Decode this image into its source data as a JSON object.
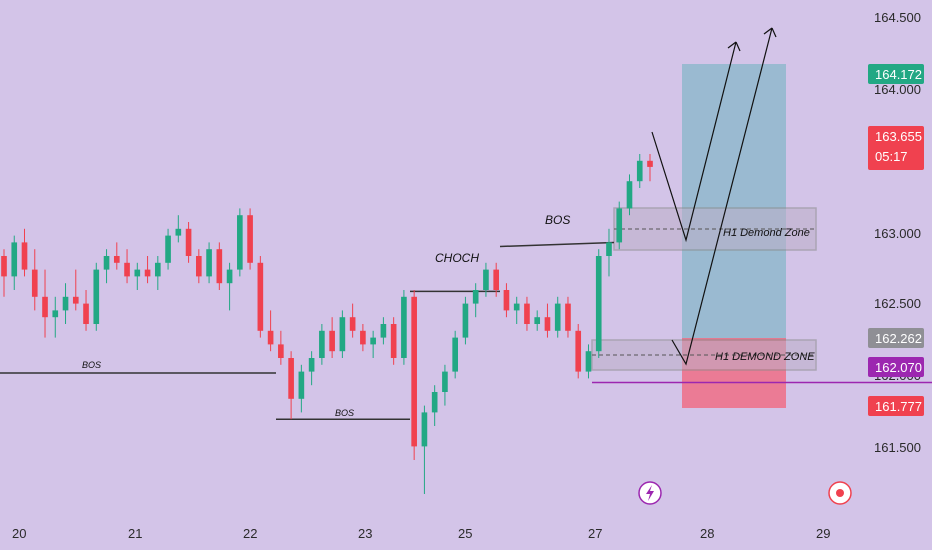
{
  "chart_data": {
    "type": "candlestick",
    "y_ticks": [
      "164.500",
      "164.000",
      "163.000",
      "162.500",
      "162.000",
      "161.500"
    ],
    "x_ticks": [
      "20",
      "21",
      "22",
      "23",
      "25",
      "27",
      "28",
      "29"
    ],
    "ylim": [
      161.0,
      164.75
    ],
    "price_badges": [
      {
        "value": "164.172",
        "color": "#22a884"
      },
      {
        "value": "163.655",
        "sub": "05:17",
        "color": "#f0414f"
      },
      {
        "value": "162.262",
        "color": "#8f8f95"
      },
      {
        "value": "162.070",
        "color": "#9c27b0"
      },
      {
        "value": "161.777",
        "color": "#f0414f"
      }
    ],
    "annotations": {
      "bos_left": "BOS",
      "bos_mid": "BOS",
      "bos_top": "BOS",
      "choch": "CHOCH",
      "zone_upper": "H1 Demond Zone",
      "zone_lower": "H1 DEMOND ZONE"
    },
    "levels": {
      "bos_left": 162.14,
      "bos_mid": 161.8,
      "choch": 162.74,
      "bos_top": 163.07,
      "zone_upper": [
        162.89,
        163.15
      ],
      "zone_lower": [
        162.02,
        162.22
      ],
      "entry_line": 162.07,
      "take_profit": 164.172,
      "stop_loss": 161.777
    },
    "candles": {
      "up_color": "#22a884",
      "down_color": "#f0414f",
      "series": [
        [
          163.0,
          163.05,
          162.7,
          162.85
        ],
        [
          162.85,
          163.15,
          162.75,
          163.1
        ],
        [
          163.1,
          163.2,
          162.85,
          162.9
        ],
        [
          162.9,
          163.05,
          162.6,
          162.7
        ],
        [
          162.7,
          162.9,
          162.4,
          162.55
        ],
        [
          162.55,
          162.7,
          162.4,
          162.6
        ],
        [
          162.6,
          162.8,
          162.5,
          162.7
        ],
        [
          162.7,
          162.9,
          162.6,
          162.65
        ],
        [
          162.65,
          162.75,
          162.45,
          162.5
        ],
        [
          162.5,
          162.95,
          162.45,
          162.9
        ],
        [
          162.9,
          163.05,
          162.8,
          163.0
        ],
        [
          163.0,
          163.1,
          162.9,
          162.95
        ],
        [
          162.95,
          163.05,
          162.8,
          162.85
        ],
        [
          162.85,
          162.95,
          162.75,
          162.9
        ],
        [
          162.9,
          163.0,
          162.8,
          162.85
        ],
        [
          162.85,
          163.0,
          162.75,
          162.95
        ],
        [
          162.95,
          163.2,
          162.9,
          163.15
        ],
        [
          163.15,
          163.3,
          163.1,
          163.2
        ],
        [
          163.2,
          163.25,
          162.95,
          163.0
        ],
        [
          163.0,
          163.05,
          162.8,
          162.85
        ],
        [
          162.85,
          163.1,
          162.8,
          163.05
        ],
        [
          163.05,
          163.1,
          162.75,
          162.8
        ],
        [
          162.8,
          162.95,
          162.6,
          162.9
        ],
        [
          162.9,
          163.35,
          162.85,
          163.3
        ],
        [
          163.3,
          163.35,
          162.9,
          162.95
        ],
        [
          162.95,
          163.0,
          162.4,
          162.45
        ],
        [
          162.45,
          162.6,
          162.3,
          162.35
        ],
        [
          162.35,
          162.45,
          162.2,
          162.25
        ],
        [
          162.25,
          162.3,
          161.8,
          161.95
        ],
        [
          161.95,
          162.2,
          161.85,
          162.15
        ],
        [
          162.15,
          162.3,
          162.05,
          162.25
        ],
        [
          162.25,
          162.5,
          162.2,
          162.45
        ],
        [
          162.45,
          162.55,
          162.25,
          162.3
        ],
        [
          162.3,
          162.6,
          162.25,
          162.55
        ],
        [
          162.55,
          162.65,
          162.4,
          162.45
        ],
        [
          162.45,
          162.5,
          162.3,
          162.35
        ],
        [
          162.35,
          162.45,
          162.25,
          162.4
        ],
        [
          162.4,
          162.55,
          162.35,
          162.5
        ],
        [
          162.5,
          162.55,
          162.2,
          162.25
        ],
        [
          162.25,
          162.75,
          162.2,
          162.7
        ],
        [
          162.7,
          162.75,
          161.5,
          161.6
        ],
        [
          161.6,
          161.9,
          161.25,
          161.85
        ],
        [
          161.85,
          162.05,
          161.75,
          162.0
        ],
        [
          162.0,
          162.2,
          161.9,
          162.15
        ],
        [
          162.15,
          162.45,
          162.1,
          162.4
        ],
        [
          162.4,
          162.7,
          162.35,
          162.65
        ],
        [
          162.65,
          162.8,
          162.55,
          162.75
        ],
        [
          162.75,
          162.95,
          162.7,
          162.9
        ],
        [
          162.9,
          162.95,
          162.7,
          162.75
        ],
        [
          162.75,
          162.8,
          162.55,
          162.6
        ],
        [
          162.6,
          162.7,
          162.5,
          162.65
        ],
        [
          162.65,
          162.7,
          162.45,
          162.5
        ],
        [
          162.5,
          162.6,
          162.45,
          162.55
        ],
        [
          162.55,
          162.65,
          162.4,
          162.45
        ],
        [
          162.45,
          162.7,
          162.4,
          162.65
        ],
        [
          162.65,
          162.7,
          162.4,
          162.45
        ],
        [
          162.45,
          162.5,
          162.1,
          162.15
        ],
        [
          162.15,
          162.35,
          162.1,
          162.3
        ],
        [
          162.3,
          163.05,
          162.25,
          163.0
        ],
        [
          163.0,
          163.2,
          162.85,
          163.1
        ],
        [
          163.1,
          163.4,
          163.05,
          163.35
        ],
        [
          163.35,
          163.6,
          163.3,
          163.55
        ],
        [
          163.55,
          163.75,
          163.5,
          163.7
        ],
        [
          163.7,
          163.75,
          163.55,
          163.655
        ]
      ]
    }
  },
  "toolbar": {
    "lightning_icon": "lightning-icon",
    "record_icon": "record-icon"
  }
}
